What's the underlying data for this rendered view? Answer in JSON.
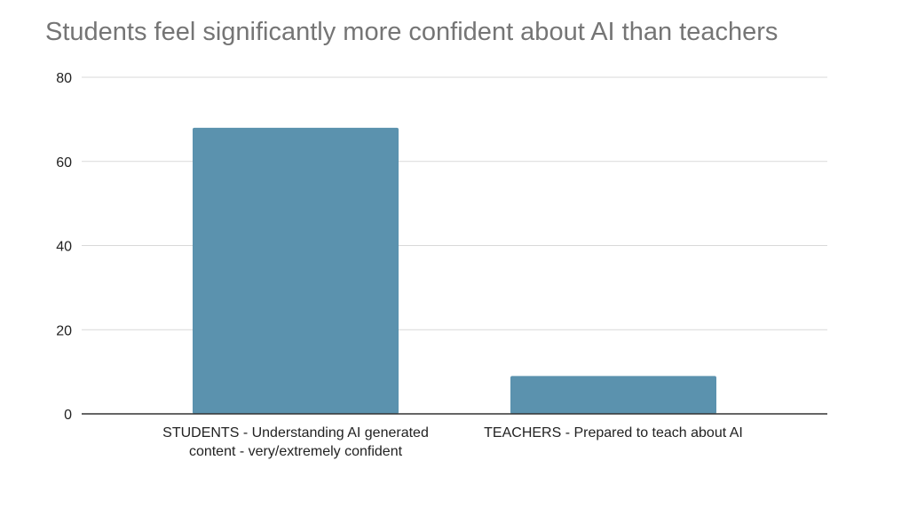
{
  "chart_data": {
    "type": "bar",
    "title": "Students feel significantly more confident about AI than teachers",
    "categories": [
      "STUDENTS - Understanding AI generated content - very/extremely confident",
      "TEACHERS - Prepared to teach about AI"
    ],
    "values": [
      68,
      9
    ],
    "ylim": [
      0,
      80
    ],
    "yticks": [
      0,
      20,
      40,
      60,
      80
    ],
    "xlabel": "",
    "ylabel": "",
    "grid": true,
    "legend": "none",
    "colors": {
      "bar": "#5b92ae",
      "grid": "#d9d9d9",
      "axis": "#333333",
      "tick_text": "#222222",
      "title": "#757575"
    }
  }
}
